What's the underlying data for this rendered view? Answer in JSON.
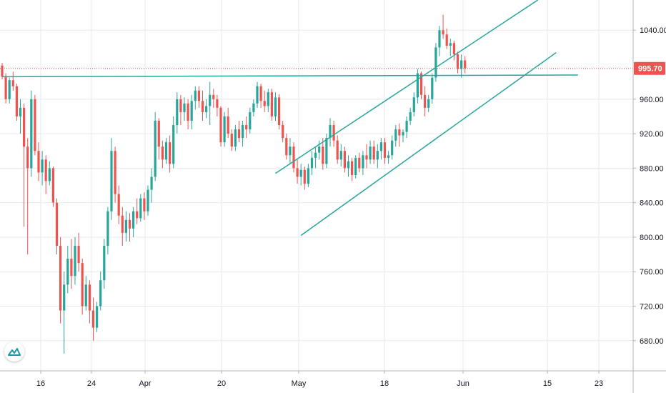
{
  "chart_data": {
    "type": "candlestick",
    "x_ticks": [
      "16",
      "24",
      "Apr",
      "20",
      "May",
      "18",
      "Jun",
      "15",
      "23"
    ],
    "y_ticks": [
      "680.00",
      "720.00",
      "760.00",
      "800.00",
      "840.00",
      "880.00",
      "920.00",
      "960.00",
      "1040.00"
    ],
    "ylim": [
      645,
      1075
    ],
    "last_price": "995.70",
    "colors": {
      "up": "#26a69a",
      "down": "#ef5350",
      "line": "#26a69a",
      "price": "#ef5350",
      "grid": "#e6e9ee"
    },
    "trendlines": [
      {
        "name": "horizontal-support",
        "from": [
          0,
          986
        ],
        "to": [
          158,
          988
        ]
      },
      {
        "name": "channel-upper",
        "from": [
          75,
          874
        ],
        "to": [
          147,
          1075
        ]
      },
      {
        "name": "channel-lower",
        "from": [
          82,
          802
        ],
        "to": [
          152,
          1014
        ]
      }
    ],
    "candles": [
      [
        999,
        1002,
        983,
        986
      ],
      [
        986,
        990,
        955,
        960
      ],
      [
        960,
        985,
        955,
        982
      ],
      [
        982,
        992,
        970,
        975
      ],
      [
        975,
        978,
        935,
        940
      ],
      [
        940,
        960,
        920,
        950
      ],
      [
        950,
        955,
        812,
        905
      ],
      [
        905,
        915,
        780,
        880
      ],
      [
        880,
        970,
        870,
        960
      ],
      [
        960,
        965,
        895,
        900
      ],
      [
        900,
        910,
        865,
        875
      ],
      [
        875,
        900,
        860,
        890
      ],
      [
        890,
        895,
        850,
        865
      ],
      [
        865,
        888,
        860,
        880
      ],
      [
        880,
        882,
        835,
        840
      ],
      [
        840,
        845,
        780,
        790
      ],
      [
        790,
        800,
        700,
        715
      ],
      [
        715,
        760,
        665,
        745
      ],
      [
        745,
        790,
        735,
        775
      ],
      [
        775,
        798,
        740,
        755
      ],
      [
        755,
        800,
        745,
        790
      ],
      [
        790,
        805,
        760,
        770
      ],
      [
        770,
        775,
        710,
        720
      ],
      [
        720,
        755,
        715,
        745
      ],
      [
        745,
        750,
        700,
        715
      ],
      [
        715,
        730,
        680,
        695
      ],
      [
        695,
        725,
        690,
        720
      ],
      [
        720,
        760,
        715,
        750
      ],
      [
        750,
        798,
        740,
        790
      ],
      [
        790,
        835,
        780,
        830
      ],
      [
        830,
        915,
        820,
        900
      ],
      [
        900,
        905,
        840,
        850
      ],
      [
        850,
        860,
        815,
        825
      ],
      [
        825,
        835,
        790,
        805
      ],
      [
        805,
        830,
        795,
        820
      ],
      [
        820,
        828,
        795,
        810
      ],
      [
        810,
        835,
        800,
        830
      ],
      [
        830,
        845,
        815,
        822
      ],
      [
        822,
        850,
        818,
        845
      ],
      [
        845,
        852,
        820,
        830
      ],
      [
        830,
        860,
        825,
        855
      ],
      [
        855,
        880,
        840,
        870
      ],
      [
        870,
        945,
        865,
        935
      ],
      [
        935,
        938,
        890,
        905
      ],
      [
        905,
        912,
        880,
        890
      ],
      [
        890,
        915,
        885,
        910
      ],
      [
        910,
        918,
        875,
        885
      ],
      [
        885,
        940,
        880,
        930
      ],
      [
        930,
        968,
        920,
        960
      ],
      [
        960,
        965,
        930,
        945
      ],
      [
        945,
        962,
        935,
        955
      ],
      [
        955,
        960,
        925,
        935
      ],
      [
        935,
        965,
        925,
        958
      ],
      [
        958,
        975,
        948,
        970
      ],
      [
        970,
        975,
        950,
        958
      ],
      [
        958,
        970,
        935,
        945
      ],
      [
        945,
        960,
        938,
        952
      ],
      [
        952,
        980,
        930,
        965
      ],
      [
        965,
        972,
        950,
        960
      ],
      [
        960,
        965,
        940,
        950
      ],
      [
        950,
        952,
        905,
        910
      ],
      [
        910,
        945,
        905,
        940
      ],
      [
        940,
        950,
        915,
        920
      ],
      [
        920,
        925,
        900,
        905
      ],
      [
        905,
        930,
        900,
        925
      ],
      [
        925,
        935,
        910,
        915
      ],
      [
        915,
        935,
        905,
        930
      ],
      [
        930,
        940,
        915,
        925
      ],
      [
        925,
        950,
        920,
        945
      ],
      [
        945,
        960,
        940,
        955
      ],
      [
        955,
        980,
        950,
        975
      ],
      [
        975,
        978,
        950,
        958
      ],
      [
        958,
        970,
        945,
        952
      ],
      [
        952,
        972,
        945,
        968
      ],
      [
        968,
        972,
        935,
        940
      ],
      [
        940,
        968,
        935,
        962
      ],
      [
        962,
        966,
        925,
        930
      ],
      [
        930,
        935,
        910,
        915
      ],
      [
        915,
        920,
        890,
        895
      ],
      [
        895,
        915,
        885,
        905
      ],
      [
        905,
        910,
        875,
        880
      ],
      [
        880,
        890,
        862,
        870
      ],
      [
        870,
        885,
        860,
        878
      ],
      [
        878,
        882,
        855,
        862
      ],
      [
        862,
        885,
        858,
        880
      ],
      [
        880,
        900,
        872,
        892
      ],
      [
        892,
        905,
        880,
        898
      ],
      [
        898,
        912,
        890,
        905
      ],
      [
        905,
        915,
        878,
        885
      ],
      [
        885,
        920,
        880,
        915
      ],
      [
        915,
        938,
        905,
        930
      ],
      [
        930,
        935,
        905,
        912
      ],
      [
        912,
        918,
        885,
        890
      ],
      [
        890,
        908,
        882,
        900
      ],
      [
        900,
        905,
        875,
        880
      ],
      [
        880,
        895,
        870,
        888
      ],
      [
        888,
        892,
        865,
        872
      ],
      [
        872,
        895,
        868,
        892
      ],
      [
        892,
        898,
        875,
        880
      ],
      [
        880,
        900,
        872,
        895
      ],
      [
        895,
        908,
        880,
        890
      ],
      [
        890,
        912,
        885,
        905
      ],
      [
        905,
        912,
        885,
        890
      ],
      [
        890,
        908,
        880,
        900
      ],
      [
        900,
        915,
        890,
        910
      ],
      [
        910,
        915,
        885,
        892
      ],
      [
        892,
        900,
        885,
        895
      ],
      [
        895,
        918,
        890,
        912
      ],
      [
        912,
        930,
        905,
        925
      ],
      [
        925,
        932,
        905,
        918
      ],
      [
        918,
        925,
        910,
        922
      ],
      [
        922,
        940,
        915,
        935
      ],
      [
        935,
        950,
        930,
        945
      ],
      [
        945,
        968,
        940,
        962
      ],
      [
        962,
        995,
        955,
        990
      ],
      [
        990,
        992,
        960,
        965
      ],
      [
        965,
        975,
        940,
        950
      ],
      [
        950,
        965,
        945,
        960
      ],
      [
        960,
        990,
        955,
        985
      ],
      [
        985,
        1025,
        980,
        1020
      ],
      [
        1020,
        1045,
        1010,
        1040
      ],
      [
        1040,
        1058,
        1030,
        1035
      ],
      [
        1035,
        1042,
        1018,
        1022
      ],
      [
        1022,
        1030,
        1010,
        1025
      ],
      [
        1025,
        1028,
        1005,
        1012
      ],
      [
        1012,
        1015,
        990,
        995
      ],
      [
        995,
        1012,
        985,
        1005
      ],
      [
        1005,
        1010,
        990,
        996
      ]
    ]
  }
}
